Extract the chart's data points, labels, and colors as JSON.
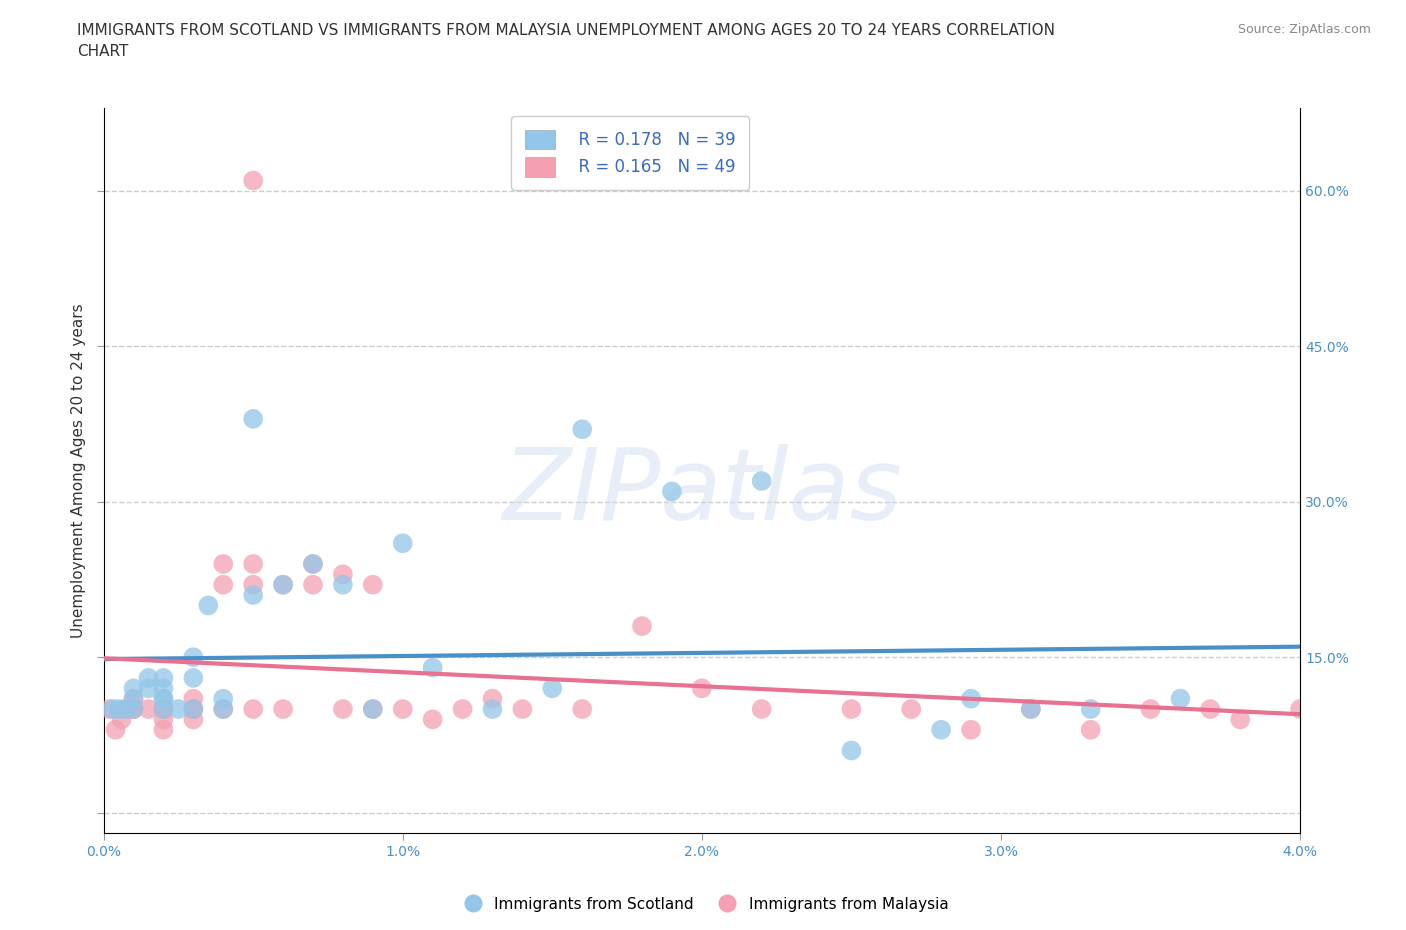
{
  "title": "IMMIGRANTS FROM SCOTLAND VS IMMIGRANTS FROM MALAYSIA UNEMPLOYMENT AMONG AGES 20 TO 24 YEARS CORRELATION\nCHART",
  "source": "Source: ZipAtlas.com",
  "ylabel": "Unemployment Among Ages 20 to 24 years",
  "xlim": [
    0.0,
    0.04
  ],
  "ylim": [
    -0.02,
    0.68
  ],
  "xticks": [
    0.0,
    0.01,
    0.02,
    0.03,
    0.04
  ],
  "yticks": [
    0.0,
    0.15,
    0.3,
    0.45,
    0.6
  ],
  "xtick_labels": [
    "0.0%",
    "1.0%",
    "2.0%",
    "3.0%",
    "4.0%"
  ],
  "ytick_labels_right": [
    "60.0%",
    "45.0%",
    "30.0%",
    "15.0%"
  ],
  "scotland_color": "#93C6E8",
  "malaysia_color": "#F4A0B0",
  "scotland_R": 0.178,
  "scotland_N": 39,
  "malaysia_R": 0.165,
  "malaysia_N": 49,
  "trend_blue": "#4A90C8",
  "trend_pink": "#E87090",
  "legend_color": "#3A6BBF",
  "scotland_x": [
    0.0003,
    0.0005,
    0.0007,
    0.001,
    0.001,
    0.001,
    0.0015,
    0.0015,
    0.002,
    0.002,
    0.002,
    0.002,
    0.002,
    0.0025,
    0.003,
    0.003,
    0.003,
    0.0035,
    0.004,
    0.004,
    0.005,
    0.005,
    0.006,
    0.007,
    0.008,
    0.009,
    0.01,
    0.011,
    0.013,
    0.015,
    0.016,
    0.019,
    0.022,
    0.025,
    0.028,
    0.029,
    0.031,
    0.033,
    0.036
  ],
  "scotland_y": [
    0.1,
    0.1,
    0.1,
    0.11,
    0.12,
    0.1,
    0.13,
    0.12,
    0.11,
    0.13,
    0.12,
    0.11,
    0.1,
    0.1,
    0.13,
    0.15,
    0.1,
    0.2,
    0.1,
    0.11,
    0.21,
    0.38,
    0.22,
    0.24,
    0.22,
    0.1,
    0.26,
    0.14,
    0.1,
    0.12,
    0.37,
    0.31,
    0.32,
    0.06,
    0.08,
    0.11,
    0.1,
    0.1,
    0.11
  ],
  "malaysia_x": [
    0.0002,
    0.0004,
    0.0006,
    0.0008,
    0.001,
    0.001,
    0.001,
    0.0015,
    0.002,
    0.002,
    0.002,
    0.002,
    0.003,
    0.003,
    0.003,
    0.003,
    0.004,
    0.004,
    0.004,
    0.005,
    0.005,
    0.005,
    0.005,
    0.006,
    0.006,
    0.007,
    0.007,
    0.008,
    0.008,
    0.009,
    0.009,
    0.01,
    0.011,
    0.012,
    0.013,
    0.014,
    0.016,
    0.018,
    0.02,
    0.022,
    0.025,
    0.027,
    0.029,
    0.031,
    0.033,
    0.035,
    0.037,
    0.038,
    0.04
  ],
  "malaysia_y": [
    0.1,
    0.08,
    0.09,
    0.1,
    0.11,
    0.1,
    0.1,
    0.1,
    0.1,
    0.09,
    0.1,
    0.08,
    0.09,
    0.1,
    0.11,
    0.1,
    0.22,
    0.24,
    0.1,
    0.22,
    0.24,
    0.1,
    0.61,
    0.1,
    0.22,
    0.22,
    0.24,
    0.23,
    0.1,
    0.22,
    0.1,
    0.1,
    0.09,
    0.1,
    0.11,
    0.1,
    0.1,
    0.18,
    0.12,
    0.1,
    0.1,
    0.1,
    0.08,
    0.1,
    0.08,
    0.1,
    0.1,
    0.09,
    0.1
  ],
  "watermark_text": "ZIPatlas",
  "background_color": "#FFFFFF",
  "grid_color": "#CCCCCC",
  "title_fontsize": 11,
  "axis_label_fontsize": 11,
  "tick_fontsize": 10,
  "legend_fontsize": 12
}
